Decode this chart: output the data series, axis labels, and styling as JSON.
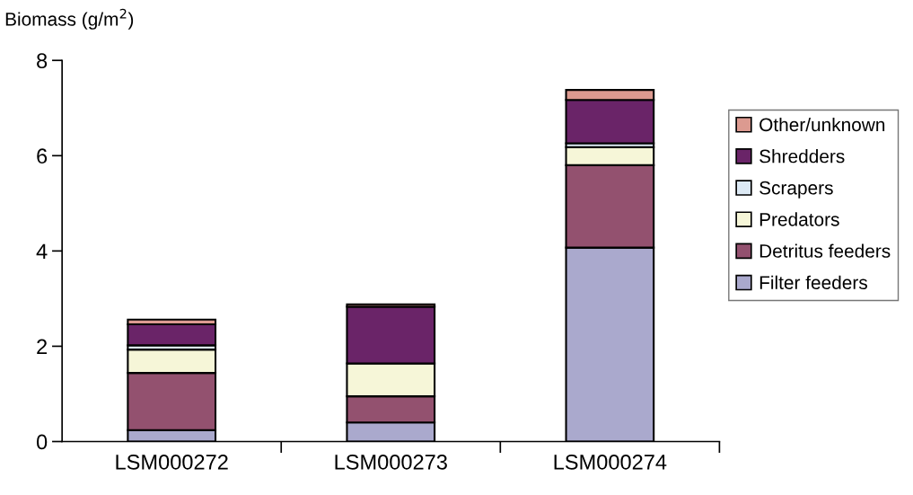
{
  "chart_data": {
    "type": "bar",
    "stacked": true,
    "ylabel": "Biomass (g/m$^{2}$)",
    "categories": [
      "LSM000272",
      "LSM000273",
      "LSM000274"
    ],
    "series": [
      {
        "name": "Filter feeders",
        "color": "#aaa9cd",
        "values": [
          0.24,
          0.4,
          4.07
        ]
      },
      {
        "name": "Detritus feeders",
        "color": "#93516f",
        "values": [
          1.2,
          0.55,
          1.73
        ]
      },
      {
        "name": "Predators",
        "color": "#f6f6d8",
        "values": [
          0.49,
          0.69,
          0.38
        ]
      },
      {
        "name": "Scrapers",
        "color": "#dce9f4",
        "values": [
          0.09,
          null,
          0.08
        ]
      },
      {
        "name": "Shredders",
        "color": "#6a2468",
        "values": [
          0.44,
          1.19,
          0.91
        ]
      },
      {
        "name": "Other/unknown",
        "color": "#dc9a90",
        "values": [
          0.1,
          0.05,
          0.21
        ]
      }
    ],
    "ylim": [
      0,
      8
    ],
    "yticks": [
      0,
      2,
      4,
      6,
      8
    ],
    "grid": false,
    "legend": "right"
  }
}
